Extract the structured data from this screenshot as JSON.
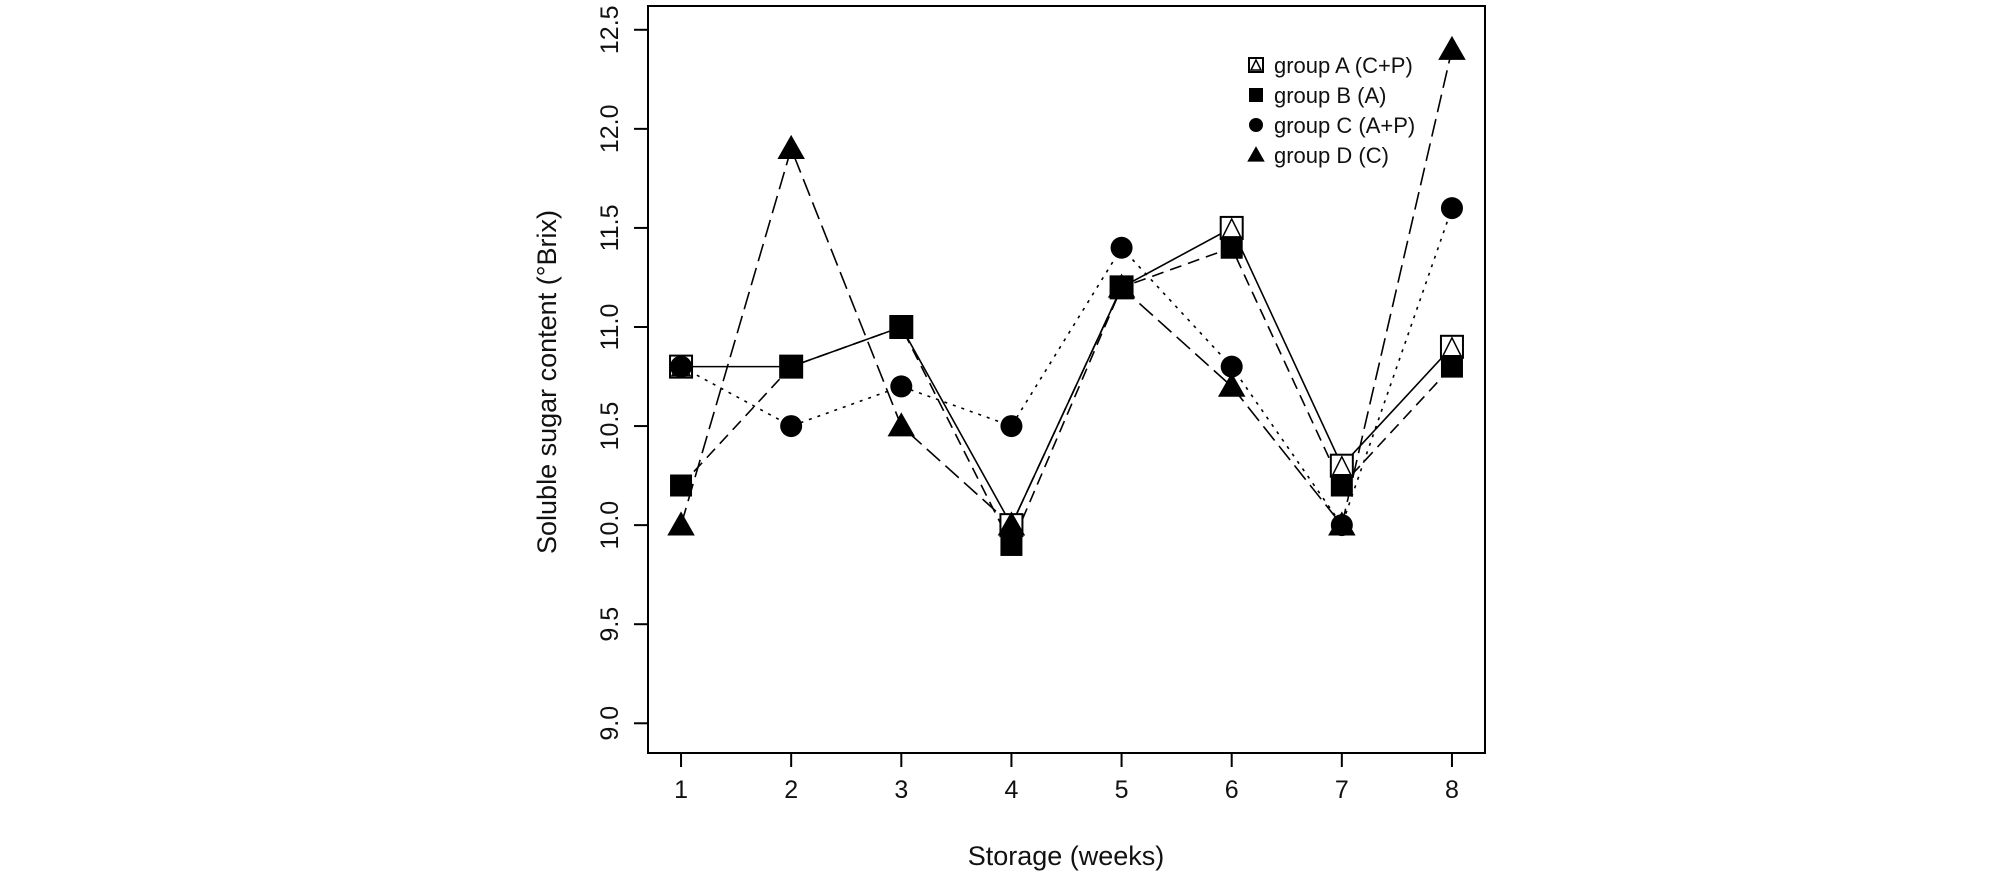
{
  "chart_data": {
    "type": "line",
    "title": "",
    "xlabel": "Storage (weeks)",
    "ylabel": "Soluble sugar content (°Brix)",
    "x": [
      1,
      2,
      3,
      4,
      5,
      6,
      7,
      8
    ],
    "xlim": [
      0.7,
      8.3
    ],
    "ylim": [
      8.85,
      12.62
    ],
    "yticks": [
      "9.0",
      "9.5",
      "10.0",
      "10.5",
      "11.0",
      "11.5",
      "12.0",
      "12.5"
    ],
    "xticks": [
      "1",
      "2",
      "3",
      "4",
      "5",
      "6",
      "7",
      "8"
    ],
    "grid": false,
    "legend_position": "top-right",
    "series": [
      {
        "name": "group A (C+P)",
        "marker": "open-square-cross",
        "line": "solid",
        "values": [
          10.8,
          10.8,
          11.0,
          10.0,
          11.2,
          11.5,
          10.3,
          10.9
        ]
      },
      {
        "name": "group B (A)",
        "marker": "filled-square",
        "line": "dashed",
        "values": [
          10.2,
          10.8,
          11.0,
          9.9,
          11.2,
          11.4,
          10.2,
          10.8
        ]
      },
      {
        "name": "group C (A+P)",
        "marker": "filled-circle",
        "line": "dotted",
        "values": [
          10.8,
          10.5,
          10.7,
          10.5,
          11.4,
          10.8,
          10.0,
          11.6
        ]
      },
      {
        "name": "group D (C)",
        "marker": "filled-triangle",
        "line": "longdash",
        "values": [
          10.0,
          11.9,
          10.5,
          10.0,
          11.2,
          10.7,
          10.0,
          12.4
        ]
      }
    ]
  }
}
